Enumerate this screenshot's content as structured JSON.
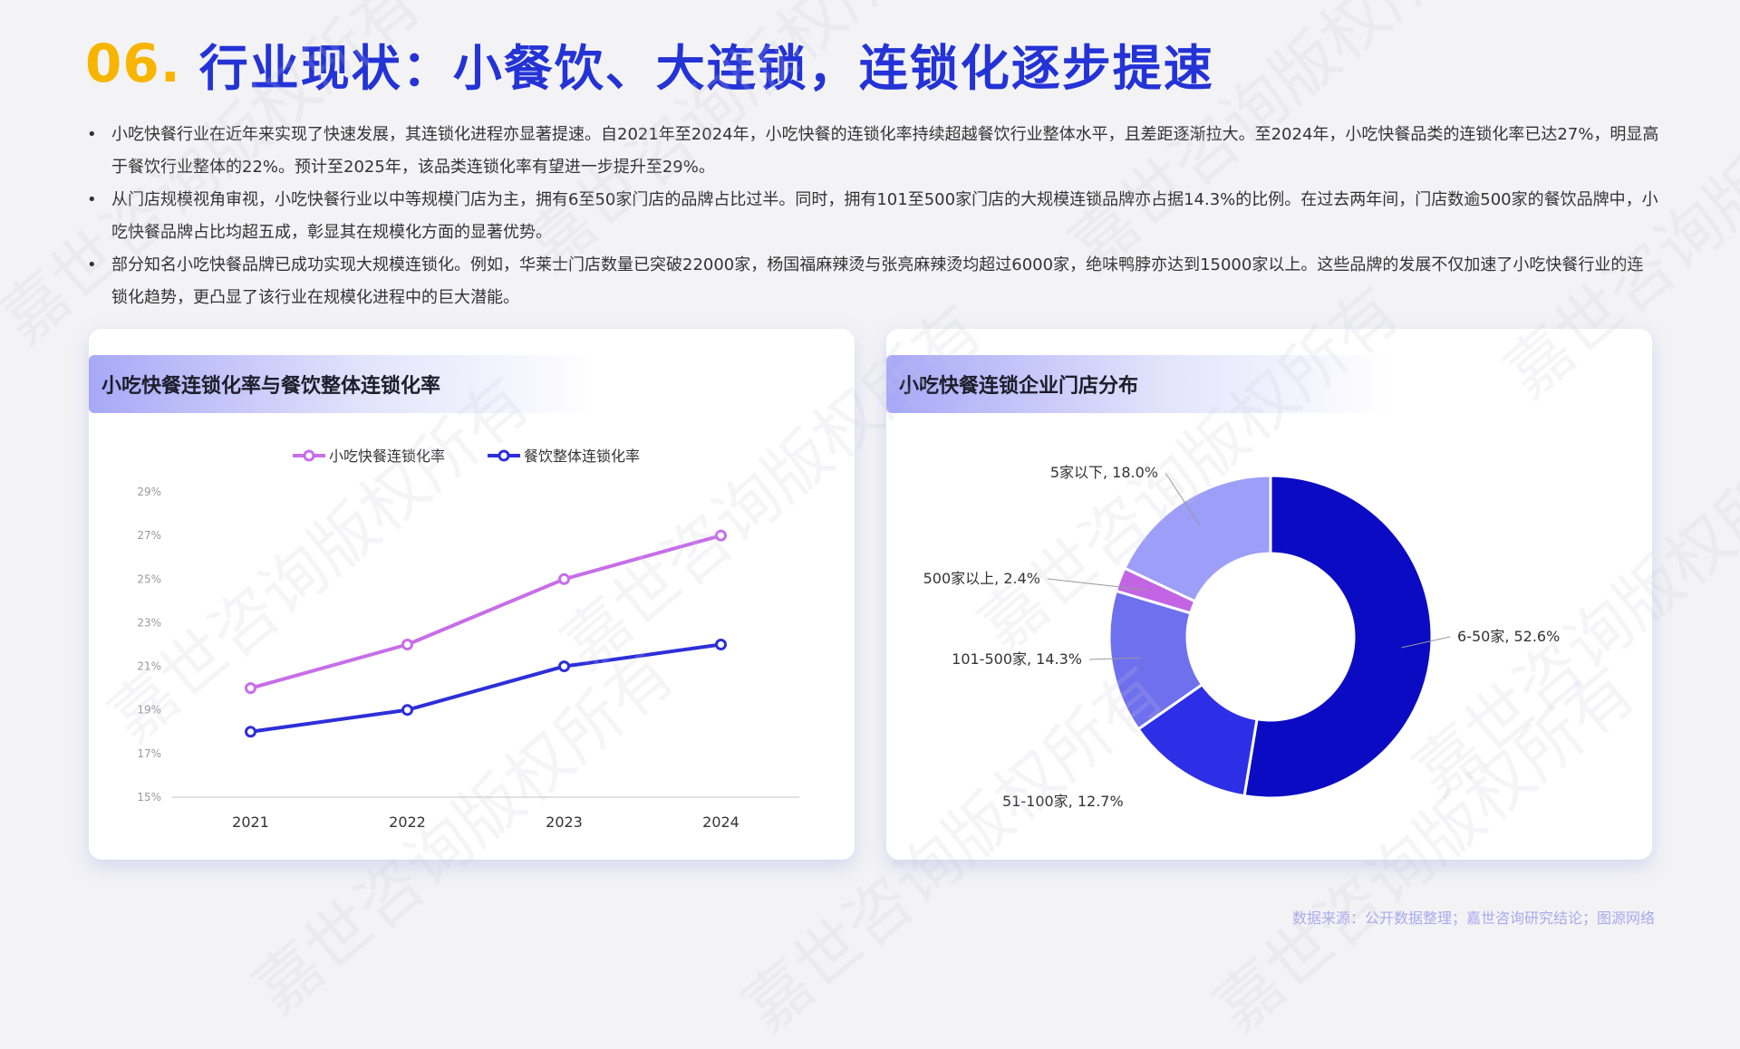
{
  "title": {
    "number": "06.",
    "text": "行业现状：小餐饮、大连锁，连锁化逐步提速"
  },
  "bullets": [
    "小吃快餐行业在近年来实现了快速发展，其连锁化进程亦显著提速。自2021年至2024年，小吃快餐的连锁化率持续超越餐饮行业整体水平，且差距逐渐拉大。至2024年，小吃快餐品类的连锁化率已达27%，明显高于餐饮行业整体的22%。预计至2025年，该品类连锁化率有望进一步提升至29%。",
    "从门店规模视角审视，小吃快餐行业以中等规模门店为主，拥有6至50家门店的品牌占比过半。同时，拥有101至500家门店的大规模连锁品牌亦占据14.3%的比例。在过去两年间，门店数逾500家的餐饮品牌中，小吃快餐品牌占比均超五成，彰显其在规模化方面的显著优势。",
    "部分知名小吃快餐品牌已成功实现大规模连锁化。例如，华莱士门店数量已突破22000家，杨国福麻辣烫与张亮麻辣烫均超过6000家，绝味鸭脖亦达到15000家以上。这些品牌的发展不仅加速了小吃快餐行业的连锁化趋势，更凸显了该行业在规模化进程中的巨大潜能。"
  ],
  "line_card": {
    "header": "小吃快餐连锁化率与餐饮整体连锁化率"
  },
  "pie_card": {
    "header": "小吃快餐连锁企业门店分布"
  },
  "source": "数据来源：公开数据整理；嘉世咨询研究结论；图源网络",
  "watermark": "嘉世咨询版权所有",
  "chart_data": [
    {
      "type": "line",
      "categories": [
        "2021",
        "2022",
        "2023",
        "2024"
      ],
      "series": [
        {
          "name": "小吃快餐连锁化率",
          "values": [
            20,
            22,
            25,
            27
          ],
          "color": "#c76ee8"
        },
        {
          "name": "餐饮整体连锁化率",
          "values": [
            18,
            19,
            21,
            22
          ],
          "color": "#2d2fd9"
        }
      ],
      "yticks": [
        15,
        17,
        19,
        21,
        23,
        25,
        27,
        29
      ],
      "ytick_labels": [
        "15%",
        "17%",
        "19%",
        "21%",
        "23%",
        "25%",
        "27%",
        "29%"
      ],
      "ylim": [
        15,
        29
      ],
      "legend": "top-center",
      "grid": false
    },
    {
      "type": "pie",
      "donut": true,
      "slices": [
        {
          "label": "6-50家",
          "value": 52.6,
          "text": "6-50家, 52.6%",
          "color": "#0b0bc4"
        },
        {
          "label": "51-100家",
          "value": 12.7,
          "text": "51-100家, 12.7%",
          "color": "#2d2fe6"
        },
        {
          "label": "101-500家",
          "value": 14.3,
          "text": "101-500家, 14.3%",
          "color": "#6f70ee"
        },
        {
          "label": "500家以上",
          "value": 2.4,
          "text": "500家以上, 2.4%",
          "color": "#c264e4"
        },
        {
          "label": "5家以下",
          "value": 18.0,
          "text": "5家以下, 18.0%",
          "color": "#9d9ef8"
        }
      ]
    }
  ]
}
